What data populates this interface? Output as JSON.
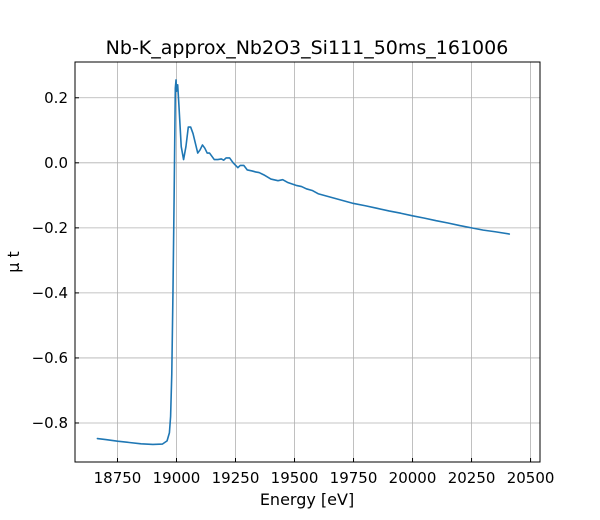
{
  "chart_data": {
    "type": "line",
    "title": "Nb-K_approx_Nb2O3_Si111_50ms_161006",
    "xlabel": "Energy [eV]",
    "ylabel": "μ t",
    "xlim": [
      18570,
      20540
    ],
    "ylim": [
      -0.92,
      0.31
    ],
    "grid": true,
    "x_ticks": [
      18750,
      19000,
      19250,
      19500,
      19750,
      20000,
      20250,
      20500
    ],
    "x_tick_labels": [
      "18750",
      "19000",
      "19250",
      "19500",
      "19750",
      "20000",
      "20250",
      "20500"
    ],
    "y_ticks": [
      -0.8,
      -0.6,
      -0.4,
      -0.2,
      0.0,
      0.2
    ],
    "y_tick_labels": [
      "−0.8",
      "−0.6",
      "−0.4",
      "−0.2",
      "0.0",
      "0.2"
    ],
    "series": [
      {
        "color": "#1f77b4",
        "x": [
          18665,
          18700,
          18750,
          18800,
          18850,
          18900,
          18940,
          18960,
          18970,
          18975,
          18980,
          18985,
          18990,
          18993,
          18995,
          18998,
          19000,
          19005,
          19010,
          19020,
          19030,
          19040,
          19050,
          19060,
          19070,
          19080,
          19090,
          19100,
          19110,
          19120,
          19130,
          19140,
          19150,
          19160,
          19175,
          19190,
          19200,
          19210,
          19225,
          19240,
          19260,
          19270,
          19285,
          19300,
          19320,
          19335,
          19350,
          19370,
          19400,
          19430,
          19450,
          19470,
          19490,
          19510,
          19530,
          19550,
          19575,
          19600,
          19650,
          19700,
          19750,
          19800,
          19850,
          19900,
          19950,
          20000,
          20050,
          20100,
          20150,
          20200,
          20250,
          20300,
          20350,
          20410
        ],
        "y": [
          -0.848,
          -0.851,
          -0.856,
          -0.86,
          -0.864,
          -0.866,
          -0.865,
          -0.855,
          -0.83,
          -0.78,
          -0.65,
          -0.4,
          -0.1,
          0.1,
          0.23,
          0.255,
          0.22,
          0.24,
          0.18,
          0.05,
          0.01,
          0.05,
          0.11,
          0.11,
          0.09,
          0.06,
          0.03,
          0.04,
          0.055,
          0.045,
          0.03,
          0.03,
          0.02,
          0.01,
          0.01,
          0.012,
          0.008,
          0.015,
          0.015,
          0.0,
          -0.015,
          -0.008,
          -0.008,
          -0.022,
          -0.025,
          -0.028,
          -0.03,
          -0.037,
          -0.05,
          -0.055,
          -0.052,
          -0.06,
          -0.065,
          -0.07,
          -0.073,
          -0.08,
          -0.085,
          -0.095,
          -0.105,
          -0.115,
          -0.125,
          -0.132,
          -0.14,
          -0.148,
          -0.155,
          -0.163,
          -0.17,
          -0.178,
          -0.185,
          -0.193,
          -0.2,
          -0.207,
          -0.212,
          -0.219
        ]
      }
    ]
  }
}
